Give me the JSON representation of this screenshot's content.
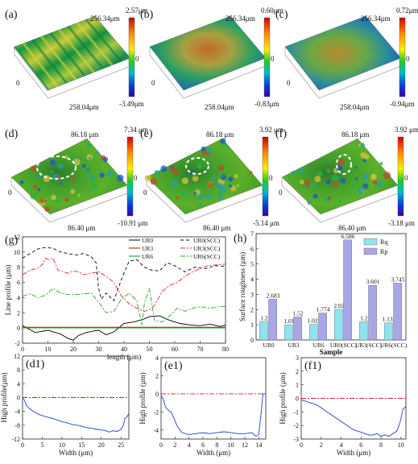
{
  "panels_top": [
    {
      "label": "(a)",
      "vmax": "2.57μm",
      "vmid": "0",
      "vmin": "-3.49μm",
      "ydim": "256.34μm",
      "xdim": "258.04μm",
      "zero": "0"
    },
    {
      "label": "(b)",
      "vmax": "0.60μm",
      "vmid": "0",
      "vmin": "-0.83μm",
      "ydim": "256.34μm",
      "xdim": "258.04μm",
      "zero": "0"
    },
    {
      "label": "(c)",
      "vmax": "0.72μm",
      "vmid": "0",
      "vmin": "-0.94μm",
      "ydim": "256.34μm",
      "xdim": "258.04μm",
      "zero": "0"
    }
  ],
  "panels_mid": [
    {
      "label": "(d)",
      "vmax": "7.34 μm",
      "vmid": "0",
      "vmin": "-10.91 μm",
      "ydim": "86.18 μm",
      "xdim": "86.40 μm",
      "zero": "0"
    },
    {
      "label": "(e)",
      "vmax": "3.92 μm",
      "vmid": "0",
      "vmin": "-5.14 μm",
      "ydim": "86.18 μm",
      "xdim": "86.40 μm",
      "zero": "0"
    },
    {
      "label": "(f)",
      "vmax": "3.92 μm",
      "vmid": "0",
      "vmin": "-3.18 μm",
      "ydim": "86.18 μm",
      "xdim": "86.40 μm",
      "zero": "0"
    }
  ],
  "chart_data": [
    {
      "id": "g",
      "label": "(g)",
      "type": "line",
      "xlabel": "length (μm)",
      "ylabel": "Line profile (μm)",
      "xlim": [
        0,
        80
      ],
      "ylim": [
        -2,
        12
      ],
      "xticks": [
        0,
        10,
        20,
        30,
        40,
        50,
        60,
        70,
        80
      ],
      "yticks": [
        -2,
        0,
        2,
        4,
        6,
        8,
        10,
        12
      ],
      "legend": "top-right",
      "series": [
        {
          "name": "UR0",
          "color": "#000000",
          "dash": "",
          "x": [
            0,
            5,
            10,
            15,
            18,
            20,
            22,
            25,
            28,
            30,
            33,
            36,
            40,
            44,
            48,
            50,
            54,
            58,
            62,
            66,
            70,
            74,
            78,
            80
          ],
          "y": [
            0.3,
            -0.6,
            -0.3,
            -0.8,
            -1.4,
            -1.6,
            -1.0,
            -0.6,
            -0.4,
            -0.3,
            -0.9,
            -0.5,
            0.6,
            0.8,
            1.2,
            1.5,
            1.6,
            1.0,
            0.6,
            0.4,
            0.3,
            0.5,
            0.2,
            0.4
          ]
        },
        {
          "name": "UR3",
          "color": "#cc0000",
          "dash": "",
          "x": [
            0,
            10,
            20,
            30,
            40,
            50,
            60,
            70,
            80
          ],
          "y": [
            0.1,
            0.1,
            0.1,
            0.1,
            0.1,
            0.1,
            0.1,
            0.1,
            0.1
          ]
        },
        {
          "name": "UR6",
          "color": "#00aa00",
          "dash": "",
          "x": [
            0,
            10,
            20,
            30,
            40,
            50,
            60,
            70,
            80
          ],
          "y": [
            0.0,
            0.0,
            0.0,
            0.0,
            0.0,
            0.0,
            0.0,
            0.0,
            0.0
          ]
        },
        {
          "name": "UR0(SCC)",
          "color": "#000000",
          "dash": "4,3",
          "x": [
            0,
            3,
            6,
            9,
            12,
            15,
            18,
            21,
            24,
            27,
            29,
            30,
            31,
            33,
            36,
            39,
            42,
            45,
            48,
            51,
            54,
            57,
            60,
            64,
            68,
            72,
            76,
            80
          ],
          "y": [
            9.2,
            9.8,
            10.4,
            10.6,
            10.5,
            10.0,
            9.8,
            9.6,
            9.8,
            9.4,
            8.6,
            5.2,
            3.8,
            4.6,
            3.6,
            6.4,
            8.8,
            9.0,
            8.0,
            7.6,
            7.5,
            8.6,
            8.2,
            7.4,
            8.0,
            7.8,
            8.2,
            8.1
          ]
        },
        {
          "name": "UR3(SCC)",
          "color": "#ee2222",
          "dash": "6,2,2,2",
          "x": [
            0,
            3,
            6,
            8,
            9,
            10,
            12,
            14,
            16,
            18,
            20,
            22,
            24,
            27,
            30,
            33,
            36,
            39,
            42,
            45,
            48,
            50,
            52,
            55,
            58,
            61,
            64,
            67,
            70,
            73,
            76,
            80
          ],
          "y": [
            7.0,
            7.6,
            7.9,
            8.4,
            9.2,
            9.0,
            9.2,
            7.6,
            7.4,
            7.2,
            7.5,
            7.4,
            7.0,
            7.2,
            7.4,
            6.8,
            6.0,
            4.2,
            3.2,
            2.6,
            2.2,
            2.4,
            3.0,
            4.8,
            5.6,
            6.0,
            6.8,
            7.4,
            7.8,
            8.2,
            8.3,
            8.4
          ]
        },
        {
          "name": "UR6(SCC)",
          "color": "#22aa22",
          "dash": "6,2,2,2",
          "x": [
            0,
            3,
            6,
            9,
            12,
            15,
            18,
            21,
            24,
            27,
            30,
            33,
            36,
            39,
            42,
            45,
            47,
            48,
            50,
            52,
            55,
            58,
            61,
            64,
            67,
            70,
            74,
            77,
            80
          ],
          "y": [
            4.2,
            4.5,
            4.0,
            4.3,
            5.2,
            4.6,
            4.4,
            4.4,
            4.5,
            4.6,
            3.4,
            2.0,
            2.2,
            3.8,
            4.6,
            3.6,
            0.4,
            3.2,
            5.2,
            1.0,
            0.8,
            1.6,
            2.6,
            2.2,
            2.6,
            2.8,
            2.6,
            2.8,
            2.8
          ]
        }
      ]
    },
    {
      "id": "h",
      "label": "(h)",
      "type": "bar",
      "xlabel": "Sample",
      "ylabel": "Surface roughness (μm)",
      "ylim": [
        0,
        7
      ],
      "yticks": [
        0,
        1,
        2,
        3,
        4,
        5,
        6,
        7
      ],
      "legend": "top-right",
      "categories": [
        "UR0",
        "UR3",
        "UR6",
        "UR0(SCC)",
        "UR3(SCC)",
        "UR6(SCC)"
      ],
      "series": [
        {
          "name": "Rq",
          "color": "#8fe3f0",
          "values": [
            1.2,
            1.01,
            1.025,
            2.02,
            1.2,
            1.133
          ],
          "labels": [
            "1.2",
            "1.01",
            "1.025",
            "2.02",
            "1.2",
            "1.133"
          ]
        },
        {
          "name": "Rp",
          "color": "#a9a6e8",
          "values": [
            2.683,
            1.52,
            1.774,
            6.586,
            3.601,
            3.745
          ],
          "labels": [
            "2.683",
            "1.52",
            "1.774",
            "6.586",
            "3.601",
            "3.745"
          ]
        }
      ]
    },
    {
      "id": "d1",
      "label": "(d1)",
      "type": "line",
      "xlabel": "Width (μm)",
      "ylabel": "High profile(μm)",
      "xlim": [
        0,
        27
      ],
      "ylim": [
        -12,
        12
      ],
      "xticks": [
        0,
        5,
        10,
        15,
        20,
        25
      ],
      "yticks": [
        -12,
        -8,
        -4,
        0,
        4,
        8,
        12
      ],
      "series": [
        {
          "name": "",
          "color": "#1f3fcc",
          "x": [
            0,
            0.5,
            1,
            2,
            3,
            4,
            5,
            6,
            7,
            8,
            9,
            10,
            11,
            12,
            13,
            14,
            15,
            16,
            17,
            18,
            19,
            20,
            21,
            22,
            23,
            24,
            25,
            25.6,
            26,
            26.5,
            27
          ],
          "y": [
            0,
            -0.8,
            -2.4,
            -3.4,
            -4.2,
            -4.8,
            -5.2,
            -5.6,
            -5.8,
            -6.2,
            -6.6,
            -7.0,
            -7.2,
            -7.6,
            -7.9,
            -8.0,
            -8.3,
            -8.6,
            -8.8,
            -9.0,
            -9.2,
            -9.4,
            -9.5,
            -10.0,
            -9.6,
            -9.8,
            -9.2,
            -8.0,
            -6.0,
            -5.6,
            -4.6
          ]
        },
        {
          "name": "",
          "color": "#cc2222",
          "dash": "6,2,2,2",
          "x": [
            0,
            27
          ],
          "y": [
            0,
            0
          ]
        }
      ]
    },
    {
      "id": "e1",
      "label": "(e1)",
      "type": "line",
      "xlabel": "Width (μm)",
      "ylabel": "High profile (μm)",
      "xlim": [
        0,
        15
      ],
      "ylim": [
        -5,
        4
      ],
      "xticks": [
        0,
        2,
        4,
        6,
        8,
        10,
        12,
        14
      ],
      "yticks": [
        -4,
        -2,
        0,
        2,
        4
      ],
      "series": [
        {
          "name": "",
          "color": "#1f3fcc",
          "x": [
            0,
            0.3,
            0.6,
            1,
            1.4,
            1.8,
            2.2,
            2.6,
            3,
            3.5,
            4,
            5,
            6,
            7,
            8,
            9,
            10,
            11,
            12,
            13,
            13.6,
            14,
            14.3,
            14.6,
            15
          ],
          "y": [
            -0.2,
            -0.6,
            -1.4,
            -1.8,
            -2.0,
            -2.6,
            -3.4,
            -3.9,
            -4.3,
            -4.4,
            -4.5,
            -4.4,
            -4.3,
            -4.4,
            -4.3,
            -4.2,
            -4.3,
            -4.4,
            -4.4,
            -4.3,
            -4.7,
            -4.5,
            -2.4,
            0.0,
            0.0
          ]
        },
        {
          "name": "",
          "color": "#cc2222",
          "dash": "6,2,2,2",
          "x": [
            0,
            15
          ],
          "y": [
            0,
            0
          ]
        }
      ]
    },
    {
      "id": "f1",
      "label": "(f1)",
      "type": "line",
      "xlabel": "Width (μm)",
      "ylabel": "High profile (μm)",
      "xlim": [
        0,
        10.5
      ],
      "ylim": [
        -3,
        3
      ],
      "xticks": [
        0,
        2,
        4,
        6,
        8,
        10
      ],
      "yticks": [
        -3,
        -2,
        -1,
        0,
        1,
        2,
        3
      ],
      "series": [
        {
          "name": "",
          "color": "#1f3fcc",
          "x": [
            0,
            0.4,
            0.8,
            1.2,
            1.6,
            2,
            2.4,
            2.8,
            3.2,
            3.6,
            4,
            4.4,
            4.8,
            5.2,
            5.6,
            6,
            6.4,
            6.8,
            7.2,
            7.6,
            8,
            8.4,
            8.8,
            9.2,
            9.6,
            9.9,
            10.2,
            10.5
          ],
          "y": [
            -0.1,
            -0.2,
            -0.3,
            -0.4,
            -0.5,
            -0.7,
            -0.9,
            -1.1,
            -1.3,
            -1.5,
            -1.7,
            -1.9,
            -2.1,
            -2.3,
            -2.4,
            -2.5,
            -2.6,
            -2.7,
            -2.7,
            -2.6,
            -2.8,
            -2.7,
            -2.8,
            -2.6,
            -2.4,
            -1.8,
            -0.8,
            -0.6
          ]
        },
        {
          "name": "",
          "color": "#cc2222",
          "dash": "6,2,2,2",
          "x": [
            0,
            10.5
          ],
          "y": [
            0,
            0
          ]
        }
      ]
    }
  ]
}
